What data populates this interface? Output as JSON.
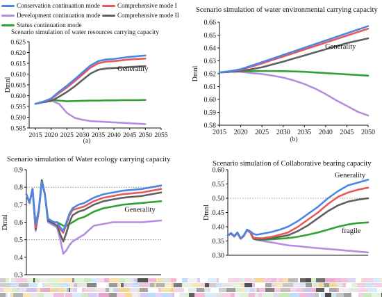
{
  "legend": {
    "items": [
      {
        "label": "Conservation continuation mode",
        "color": "#4a86e8"
      },
      {
        "label": "Comprehensive mode I",
        "color": "#e8585a"
      },
      {
        "label": "Development continuation mode",
        "color": "#b58de0"
      },
      {
        "label": "Comprehensive mode II",
        "color": "#5f5f5f"
      },
      {
        "label": "Status continuation mode",
        "color": "#2fa22f"
      }
    ]
  },
  "chart_data": [
    {
      "type": "line",
      "title": "Scenario simulation of water resources carrying capacity",
      "panel_label": "(a)",
      "ylabel": "Dmnl",
      "xlabel": "",
      "xlim": [
        2013,
        2055
      ],
      "ylim": [
        0.585,
        0.625
      ],
      "xticks": [
        2015,
        2020,
        2025,
        2030,
        2035,
        2040,
        2045,
        2050,
        2055
      ],
      "yticks": [
        0.585,
        0.59,
        0.595,
        0.6,
        0.605,
        0.61,
        0.615,
        0.62,
        0.625
      ],
      "ytick_labels": [
        "0.585",
        "0.590",
        "0.595",
        "0.600",
        "0.605",
        "0.610",
        "0.615",
        "0.620",
        "0.625"
      ],
      "grid": false,
      "annotations": [
        {
          "text": "Generality",
          "x": 2046,
          "y": 0.6115
        }
      ],
      "x": [
        2015,
        2017.5,
        2020,
        2022.5,
        2025,
        2027.5,
        2030,
        2032.5,
        2035,
        2037.5,
        2040,
        2042.5,
        2045,
        2047.5,
        2050
      ],
      "series": [
        {
          "name": "Conservation continuation mode",
          "values": [
            0.5962,
            0.5972,
            0.5987,
            0.6018,
            0.6046,
            0.6076,
            0.6108,
            0.614,
            0.616,
            0.6168,
            0.617,
            0.6175,
            0.618,
            0.6183,
            0.6186
          ]
        },
        {
          "name": "Comprehensive mode I",
          "values": [
            0.5962,
            0.5972,
            0.5985,
            0.6012,
            0.6038,
            0.6067,
            0.6098,
            0.613,
            0.615,
            0.6158,
            0.616,
            0.6164,
            0.6168,
            0.617,
            0.6172
          ]
        },
        {
          "name": "Development continuation mode",
          "values": [
            0.5962,
            0.597,
            0.5978,
            0.5962,
            0.592,
            0.5897,
            0.5888,
            0.5882,
            0.588,
            0.5878,
            0.5876,
            0.5874,
            0.5872,
            0.587,
            0.5868
          ]
        },
        {
          "name": "Comprehensive mode II",
          "values": [
            0.5962,
            0.597,
            0.5975,
            0.5995,
            0.6017,
            0.6043,
            0.6073,
            0.6102,
            0.612,
            0.6126,
            0.6128,
            0.613,
            0.6133,
            0.6135,
            0.6137
          ]
        },
        {
          "name": "Status continuation mode",
          "values": [
            0.5962,
            0.597,
            0.598,
            0.5977,
            0.5974,
            0.5975,
            0.5976,
            0.5977,
            0.5977,
            0.5978,
            0.5978,
            0.5979,
            0.5979,
            0.5979,
            0.598
          ]
        }
      ]
    },
    {
      "type": "line",
      "title": "Scenario simulation of water environmental carrying capacity",
      "panel_label": "(b)",
      "ylabel": "Dmnl",
      "xlabel": "",
      "xlim": [
        2015,
        2050
      ],
      "ylim": [
        0.58,
        0.66
      ],
      "xticks": [
        2015,
        2020,
        2025,
        2030,
        2035,
        2040,
        2045,
        2050
      ],
      "yticks": [
        0.58,
        0.59,
        0.6,
        0.61,
        0.62,
        0.63,
        0.64,
        0.65,
        0.66
      ],
      "ytick_labels": [
        "0.58",
        "0.59",
        "0.60",
        "0.61",
        "0.62",
        "0.63",
        "0.64",
        "0.65",
        "0.66"
      ],
      "grid": false,
      "annotations": [
        {
          "text": "Generality",
          "x": 2043.5,
          "y": 0.6395
        }
      ],
      "x": [
        2015,
        2017.5,
        2020,
        2022.5,
        2025,
        2027.5,
        2030,
        2032.5,
        2035,
        2037.5,
        2040,
        2042.5,
        2045,
        2047.5,
        2050
      ],
      "series": [
        {
          "name": "Conservation continuation mode",
          "values": [
            0.621,
            0.622,
            0.6235,
            0.6262,
            0.629,
            0.6318,
            0.6346,
            0.6374,
            0.6402,
            0.643,
            0.6458,
            0.6486,
            0.6514,
            0.6542,
            0.657
          ]
        },
        {
          "name": "Comprehensive mode I",
          "values": [
            0.621,
            0.622,
            0.623,
            0.6255,
            0.628,
            0.6307,
            0.6334,
            0.6361,
            0.6388,
            0.6415,
            0.6442,
            0.6469,
            0.6496,
            0.6523,
            0.655
          ]
        },
        {
          "name": "Development continuation mode",
          "values": [
            0.621,
            0.6215,
            0.6215,
            0.6205,
            0.6198,
            0.6185,
            0.617,
            0.6148,
            0.612,
            0.6085,
            0.6042,
            0.5993,
            0.595,
            0.5905,
            0.5875
          ]
        },
        {
          "name": "Comprehensive mode II",
          "values": [
            0.621,
            0.6215,
            0.622,
            0.6234,
            0.625,
            0.6272,
            0.6294,
            0.6318,
            0.6342,
            0.6366,
            0.639,
            0.6414,
            0.6438,
            0.6456,
            0.6475
          ]
        },
        {
          "name": "Status continuation mode",
          "values": [
            0.621,
            0.6215,
            0.622,
            0.622,
            0.6221,
            0.6221,
            0.622,
            0.6218,
            0.6215,
            0.621,
            0.6205,
            0.62,
            0.6195,
            0.619,
            0.6185
          ]
        }
      ]
    },
    {
      "type": "line",
      "title": "Scenario simulation of Water ecology carrying capacity",
      "panel_label": "",
      "ylabel": "Dmnl",
      "xlabel": "",
      "xlim": [
        2015,
        2050
      ],
      "ylim": [
        0.3,
        0.9
      ],
      "xticks": [],
      "yticks": [
        0.3,
        0.4,
        0.5,
        0.6,
        0.7,
        0.8,
        0.9
      ],
      "ytick_labels": [
        "0.3",
        "0.4",
        "0.5",
        "0.6",
        "0.7",
        "0.8",
        "0.9"
      ],
      "grid": false,
      "ref_lines": [
        0.8,
        0.5
      ],
      "annotations": [
        {
          "text": "Generality",
          "x": 2044.5,
          "y": 0.66
        }
      ],
      "x": [
        2015,
        2015.8,
        2016.6,
        2017.4,
        2018.2,
        2019.0,
        2019.8,
        2020.6,
        2021.4,
        2022.2,
        2023.0,
        2023.8,
        2024.6,
        2025.4,
        2026.2,
        2027.0,
        2028.5,
        2030,
        2032.5,
        2035,
        2037.5,
        2040,
        2042.5,
        2045,
        2047.5,
        2050
      ],
      "series": [
        {
          "name": "Conservation continuation mode",
          "values": [
            0.76,
            0.71,
            0.79,
            0.59,
            0.67,
            0.83,
            0.76,
            0.62,
            0.61,
            0.6,
            0.6,
            0.57,
            0.55,
            0.6,
            0.65,
            0.68,
            0.7,
            0.71,
            0.74,
            0.76,
            0.77,
            0.78,
            0.785,
            0.79,
            0.8,
            0.81
          ]
        },
        {
          "name": "Comprehensive mode I",
          "values": [
            0.76,
            0.71,
            0.79,
            0.57,
            0.66,
            0.83,
            0.76,
            0.62,
            0.61,
            0.6,
            0.6,
            0.56,
            0.54,
            0.59,
            0.64,
            0.67,
            0.68,
            0.69,
            0.72,
            0.74,
            0.75,
            0.76,
            0.765,
            0.77,
            0.78,
            0.79
          ]
        },
        {
          "name": "Development continuation mode",
          "values": [
            0.76,
            0.71,
            0.79,
            0.55,
            0.66,
            0.84,
            0.76,
            0.6,
            0.59,
            0.58,
            0.57,
            0.5,
            0.42,
            0.44,
            0.47,
            0.49,
            0.51,
            0.53,
            0.58,
            0.59,
            0.6,
            0.6,
            0.6,
            0.6,
            0.605,
            0.61
          ]
        },
        {
          "name": "Comprehensive mode II",
          "values": [
            0.76,
            0.71,
            0.79,
            0.56,
            0.66,
            0.84,
            0.76,
            0.61,
            0.6,
            0.59,
            0.58,
            0.53,
            0.49,
            0.54,
            0.6,
            0.64,
            0.66,
            0.67,
            0.7,
            0.72,
            0.73,
            0.74,
            0.745,
            0.75,
            0.76,
            0.77
          ]
        },
        {
          "name": "Status continuation mode",
          "values": [
            0.76,
            0.71,
            0.79,
            0.56,
            0.66,
            0.84,
            0.76,
            0.61,
            0.6,
            0.6,
            0.6,
            0.59,
            0.58,
            0.58,
            0.59,
            0.6,
            0.62,
            0.63,
            0.66,
            0.68,
            0.69,
            0.7,
            0.705,
            0.71,
            0.715,
            0.72
          ]
        }
      ]
    },
    {
      "type": "line",
      "title": "Scenario simulation of Collaborative bearing capacity",
      "panel_label": "",
      "ylabel": "Dmnl",
      "xlabel": "",
      "xlim": [
        2015,
        2050
      ],
      "ylim": [
        0.3,
        0.6
      ],
      "xticks": [],
      "yticks": [
        0.3,
        0.35,
        0.4,
        0.45,
        0.5,
        0.55,
        0.6
      ],
      "ytick_labels": [
        "0.30",
        "0.35",
        "0.40",
        "0.45",
        "0.50",
        "0.55",
        "0.60"
      ],
      "grid": false,
      "ref_lines": [
        0.5
      ],
      "annotations": [
        {
          "text": "Generality",
          "x": 2045.5,
          "y": 0.573
        },
        {
          "text": "fragile",
          "x": 2045.8,
          "y": 0.378
        }
      ],
      "x": [
        2015,
        2015.8,
        2016.6,
        2017.4,
        2018.2,
        2019.0,
        2019.8,
        2020.6,
        2021.4,
        2022.2,
        2023.0,
        2023.8,
        2024.6,
        2026,
        2028,
        2030,
        2032.5,
        2035,
        2037.5,
        2040,
        2042.5,
        2045,
        2047.5,
        2050
      ],
      "series": [
        {
          "name": "Conservation continuation mode",
          "values": [
            0.37,
            0.378,
            0.368,
            0.38,
            0.36,
            0.37,
            0.39,
            0.384,
            0.375,
            0.372,
            0.374,
            0.376,
            0.378,
            0.382,
            0.39,
            0.4,
            0.42,
            0.445,
            0.47,
            0.5,
            0.525,
            0.545,
            0.555,
            0.565
          ]
        },
        {
          "name": "Comprehensive mode I",
          "values": [
            0.37,
            0.376,
            0.366,
            0.378,
            0.358,
            0.368,
            0.388,
            0.38,
            0.362,
            0.36,
            0.36,
            0.36,
            0.362,
            0.365,
            0.372,
            0.38,
            0.4,
            0.425,
            0.45,
            0.48,
            0.505,
            0.52,
            0.53,
            0.537
          ]
        },
        {
          "name": "Development continuation mode",
          "values": [
            0.37,
            0.376,
            0.366,
            0.378,
            0.358,
            0.368,
            0.388,
            0.38,
            0.358,
            0.354,
            0.352,
            0.35,
            0.348,
            0.345,
            0.34,
            0.335,
            0.332,
            0.328,
            0.325,
            0.322,
            0.319,
            0.316,
            0.313,
            0.31
          ]
        },
        {
          "name": "Comprehensive mode II",
          "values": [
            0.37,
            0.376,
            0.366,
            0.378,
            0.358,
            0.368,
            0.388,
            0.38,
            0.358,
            0.356,
            0.356,
            0.357,
            0.358,
            0.36,
            0.365,
            0.37,
            0.385,
            0.405,
            0.43,
            0.455,
            0.475,
            0.488,
            0.495,
            0.5
          ]
        },
        {
          "name": "Status continuation mode",
          "values": [
            0.37,
            0.376,
            0.366,
            0.378,
            0.358,
            0.368,
            0.388,
            0.38,
            0.358,
            0.355,
            0.354,
            0.354,
            0.355,
            0.356,
            0.358,
            0.36,
            0.365,
            0.372,
            0.38,
            0.39,
            0.4,
            0.408,
            0.413,
            0.415
          ]
        }
      ]
    }
  ]
}
